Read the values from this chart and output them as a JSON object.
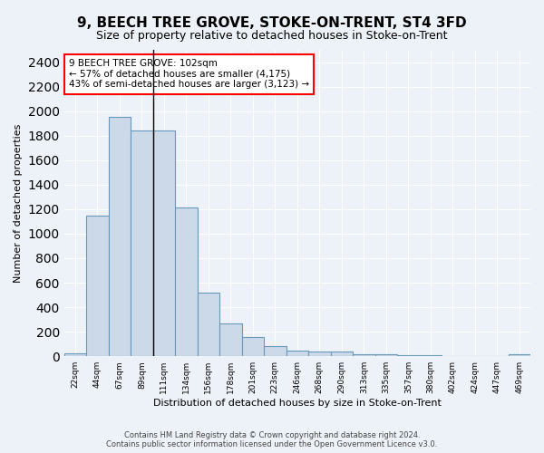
{
  "title": "9, BEECH TREE GROVE, STOKE-ON-TRENT, ST4 3FD",
  "subtitle": "Size of property relative to detached houses in Stoke-on-Trent",
  "xlabel": "Distribution of detached houses by size in Stoke-on-Trent",
  "ylabel": "Number of detached properties",
  "bin_labels": [
    "22sqm",
    "44sqm",
    "67sqm",
    "89sqm",
    "111sqm",
    "134sqm",
    "156sqm",
    "178sqm",
    "201sqm",
    "223sqm",
    "246sqm",
    "268sqm",
    "290sqm",
    "313sqm",
    "335sqm",
    "357sqm",
    "380sqm",
    "402sqm",
    "424sqm",
    "447sqm",
    "469sqm"
  ],
  "bar_values": [
    25,
    1150,
    1950,
    1840,
    1840,
    1215,
    520,
    265,
    155,
    85,
    45,
    38,
    38,
    18,
    18,
    10,
    10,
    5,
    5,
    5,
    18
  ],
  "bar_color": "#ccd9e8",
  "bar_edge_color": "#6699bb",
  "annotation_text": "9 BEECH TREE GROVE: 102sqm\n← 57% of detached houses are smaller (4,175)\n43% of semi-detached houses are larger (3,123) →",
  "annotation_bar_index": 3,
  "ylim": [
    0,
    2500
  ],
  "yticks": [
    0,
    200,
    400,
    600,
    800,
    1000,
    1200,
    1400,
    1600,
    1800,
    2000,
    2200,
    2400
  ],
  "footer": "Contains HM Land Registry data © Crown copyright and database right 2024.\nContains public sector information licensed under the Open Government Licence v3.0.",
  "bg_color": "#edf2f8",
  "plot_bg_color": "#edf2f8",
  "grid_color": "#ffffff",
  "title_fontsize": 11,
  "subtitle_fontsize": 9,
  "ylabel_fontsize": 8,
  "xlabel_fontsize": 8,
  "tick_fontsize": 6.5,
  "annotation_fontsize": 7.5,
  "footer_fontsize": 6
}
